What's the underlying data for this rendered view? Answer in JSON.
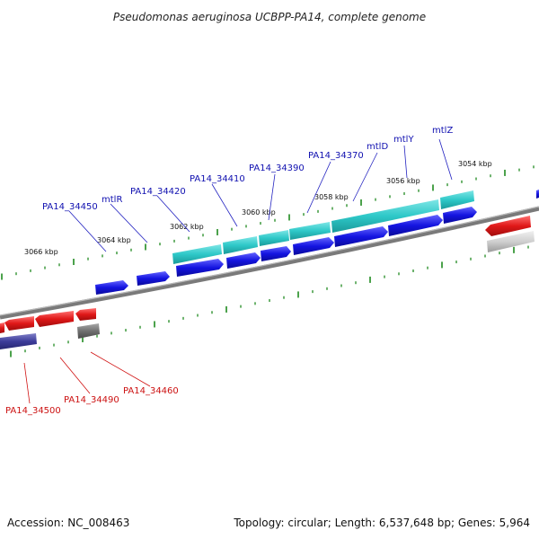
{
  "title": "Pseudomonas aeruginosa UCBPP-PA14, complete genome",
  "footer": {
    "accession": "Accession: NC_008463",
    "summary": "Topology: circular; Length: 6,537,648 bp; Genes: 5,964"
  },
  "kbp_labels": [
    "3054 kbp",
    "3056 kbp",
    "3058 kbp",
    "3060 kbp",
    "3062 kbp",
    "3064 kbp",
    "3066 kbp"
  ],
  "gene_labels_top": [
    "mtlZ",
    "mtlY",
    "mtlD",
    "PA14_34370",
    "PA14_34390",
    "PA14_34410",
    "PA14_34420",
    "mtlR",
    "PA14_34450"
  ],
  "gene_labels_bottom": [
    "PA14_34460",
    "PA14_34490",
    "PA14_34500"
  ],
  "colors": {
    "teal": "#2ec8c8",
    "blue": "#1414e0",
    "red": "#e01818",
    "gray": "#707070",
    "navy": "#3c3c9a",
    "tick": "#1f8a1f",
    "backbone": "#7a7a7a"
  }
}
